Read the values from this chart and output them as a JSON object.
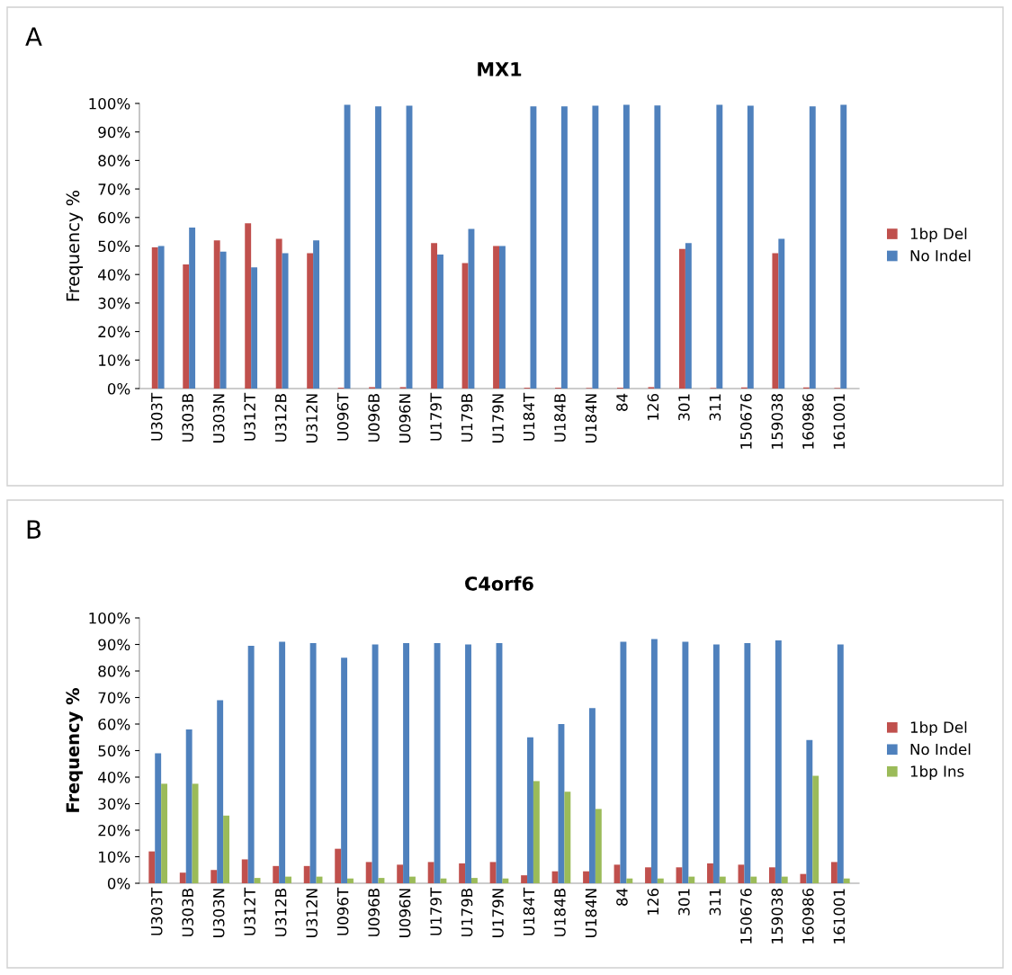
{
  "chart_data": [
    {
      "type": "bar",
      "title": "MX1",
      "ylabel": "Frequency %",
      "annotations": [
        "A"
      ],
      "categories": [
        "U303T",
        "U303B",
        "U303N",
        "U312T",
        "U312B",
        "U312N",
        "U096T",
        "U096B",
        "U096N",
        "U179T",
        "U179B",
        "U179N",
        "U184T",
        "U184B",
        "U184N",
        "84",
        "126",
        "301",
        "311",
        "150676",
        "159038",
        "160986",
        "161001"
      ],
      "series": [
        {
          "name": "1bp Del",
          "color": "#c0504d",
          "values": [
            49.5,
            43.5,
            52,
            58,
            52.5,
            47.5,
            0.3,
            0.5,
            0.5,
            51,
            44,
            50,
            0.3,
            0.3,
            0.2,
            0.3,
            0.5,
            49,
            0.2,
            0.4,
            47.5,
            0.4,
            0.2
          ]
        },
        {
          "name": "No Indel",
          "color": "#4f81bd",
          "values": [
            50,
            56.5,
            48,
            42.5,
            47.5,
            52,
            99.5,
            99,
            99.2,
            47,
            56,
            50,
            99,
            99,
            99.2,
            99.5,
            99.3,
            51,
            99.5,
            99.2,
            52.5,
            99,
            99.5
          ]
        }
      ],
      "ylim": [
        0,
        100
      ],
      "yticks": [
        {
          "value": 0,
          "label": "0%"
        },
        {
          "value": 10,
          "label": "10%"
        },
        {
          "value": 20,
          "label": "20%"
        },
        {
          "value": 30,
          "label": "30%"
        },
        {
          "value": 40,
          "label": "40%"
        },
        {
          "value": 50,
          "label": "50%"
        },
        {
          "value": 60,
          "label": "60%"
        },
        {
          "value": 70,
          "label": "70%"
        },
        {
          "value": 80,
          "label": "80%"
        },
        {
          "value": 90,
          "label": "90%"
        },
        {
          "value": 100,
          "label": "100%"
        }
      ],
      "grid": false,
      "legend": "right"
    },
    {
      "type": "bar",
      "title": "C4orf6",
      "ylabel": "Frequency %",
      "annotations": [
        "B"
      ],
      "categories": [
        "U303T",
        "U303B",
        "U303N",
        "U312T",
        "U312B",
        "U312N",
        "U096T",
        "U096B",
        "U096N",
        "U179T",
        "U179B",
        "U179N",
        "U184T",
        "U184B",
        "U184N",
        "84",
        "126",
        "301",
        "311",
        "150676",
        "159038",
        "160986",
        "161001"
      ],
      "series": [
        {
          "name": "1bp Del",
          "color": "#c0504d",
          "values": [
            12,
            4,
            5,
            9,
            6.5,
            6.5,
            13,
            8,
            7,
            8,
            7.5,
            8,
            3,
            4.5,
            4.5,
            7,
            6,
            6,
            7.5,
            7,
            6,
            3.5,
            8
          ]
        },
        {
          "name": "No Indel",
          "color": "#4f81bd",
          "values": [
            49,
            58,
            69,
            89.5,
            91,
            90.5,
            85,
            90,
            90.5,
            90.5,
            90,
            90.5,
            55,
            60,
            66,
            91,
            92,
            91,
            90,
            90.5,
            91.5,
            54,
            90
          ]
        },
        {
          "name": "1bp Ins",
          "color": "#9bbb59",
          "values": [
            37.5,
            37.5,
            25.5,
            2,
            2.5,
            2.5,
            1.8,
            2,
            2.5,
            1.8,
            2,
            1.8,
            38.5,
            34.5,
            28,
            1.8,
            1.8,
            2.5,
            2.5,
            2.5,
            2.5,
            40.5,
            1.8
          ]
        }
      ],
      "ylim": [
        0,
        100
      ],
      "yticks": [
        {
          "value": 0,
          "label": "0%"
        },
        {
          "value": 10,
          "label": "10%"
        },
        {
          "value": 20,
          "label": "20%"
        },
        {
          "value": 30,
          "label": "30%"
        },
        {
          "value": 40,
          "label": "40%"
        },
        {
          "value": 50,
          "label": "50%"
        },
        {
          "value": 60,
          "label": "60%"
        },
        {
          "value": 70,
          "label": "70%"
        },
        {
          "value": 80,
          "label": "80%"
        },
        {
          "value": 90,
          "label": "90%"
        },
        {
          "value": 100,
          "label": "100%"
        }
      ],
      "grid": false,
      "legend": "right"
    }
  ]
}
